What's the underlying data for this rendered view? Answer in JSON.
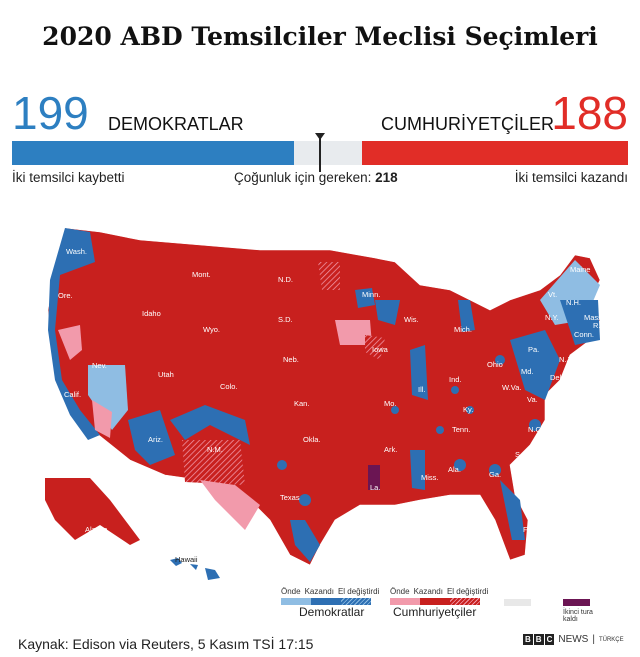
{
  "title": "2020 ABD Temsilciler Meclisi Seçimleri",
  "democrats": {
    "seats": "199",
    "label": "DEMOKRATLAR",
    "note": "İki temsilci kaybetti",
    "color": "#2d7fc1"
  },
  "republicans": {
    "seats": "188",
    "label": "CUMHURİYETÇİLER",
    "note": "İki temsilci kazandı",
    "color": "#e12d27"
  },
  "majority": {
    "label": "Çoğunluk için gereken:",
    "value": "218"
  },
  "total_seats": 435,
  "map": {
    "states": [
      "Wash.",
      "Ore.",
      "Calif.",
      "Nev.",
      "Idaho",
      "Mont.",
      "Wyo.",
      "Utah",
      "Colo.",
      "Ariz.",
      "N.M.",
      "N.D.",
      "S.D.",
      "Neb.",
      "Kan.",
      "Okla.",
      "Texas",
      "Minn.",
      "Iowa",
      "Mo.",
      "Ark.",
      "La.",
      "Wis.",
      "Ill.",
      "Miss.",
      "Mich.",
      "Ind.",
      "Ky.",
      "Tenn.",
      "Ala.",
      "Ga.",
      "Fla.",
      "Ohio",
      "W.Va.",
      "Va.",
      "N.C.",
      "S.C.",
      "Pa.",
      "N.Y.",
      "Maine",
      "Vt.",
      "N.H.",
      "Mass.",
      "Conn.",
      "R.I.",
      "N.J.",
      "Del.",
      "Md.",
      "Alaska",
      "Hawaii"
    ]
  },
  "legend": {
    "dem": {
      "name": "Demokratlar",
      "items": [
        {
          "label": "Önde",
          "color": "#8fbde3"
        },
        {
          "label": "Kazandı",
          "color": "#2d6fb3"
        },
        {
          "label": "El değiştirdi",
          "color": "#2d6fb3",
          "hatched": true
        }
      ]
    },
    "rep": {
      "name": "Cumhuriyetçiler",
      "items": [
        {
          "label": "Önde",
          "color": "#f29aab"
        },
        {
          "label": "Kazandı",
          "color": "#c8201e"
        },
        {
          "label": "El değiştirdi",
          "color": "#c8201e",
          "hatched": true
        }
      ]
    },
    "undecided_color": "#e8e8e8",
    "runoff": {
      "label": "İkinci tura kaldı",
      "color": "#6b1553"
    }
  },
  "footer": {
    "source": "Kaynak: Edison via Reuters, 5 Kasım TSİ 17:15",
    "brand": [
      "B",
      "B",
      "C"
    ],
    "news": "NEWS",
    "lang": "TÜRKÇE"
  }
}
